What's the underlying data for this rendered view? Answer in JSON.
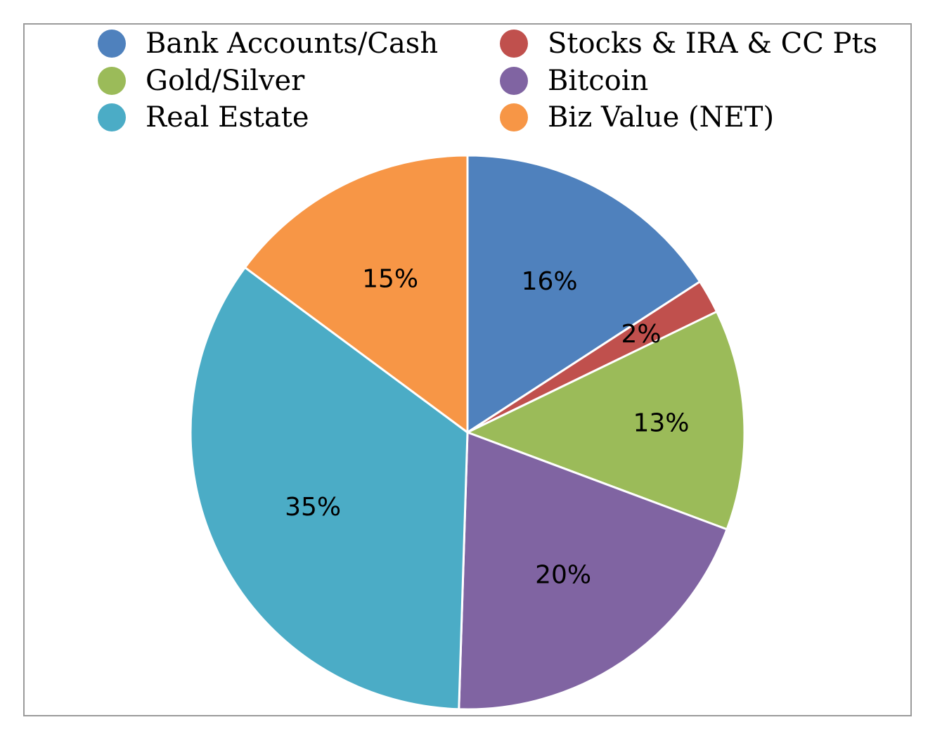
{
  "chart_data": {
    "type": "pie",
    "title": "",
    "legend_position": "top",
    "categories": [
      "Bank Accounts/Cash",
      "Stocks & IRA & CC Pts",
      "Gold/Silver",
      "Bitcoin",
      "Real Estate",
      "Biz Value (NET)"
    ],
    "values": [
      16,
      2,
      13,
      20,
      35,
      15
    ],
    "value_labels": [
      "16%",
      "2%",
      "13%",
      "20%",
      "35%",
      "15%"
    ],
    "colors": [
      "#4F81BD",
      "#C0504D",
      "#9BBB59",
      "#8064A2",
      "#4BACC6",
      "#F79646"
    ],
    "legend_order": [
      0,
      1,
      2,
      3,
      4,
      5
    ]
  }
}
